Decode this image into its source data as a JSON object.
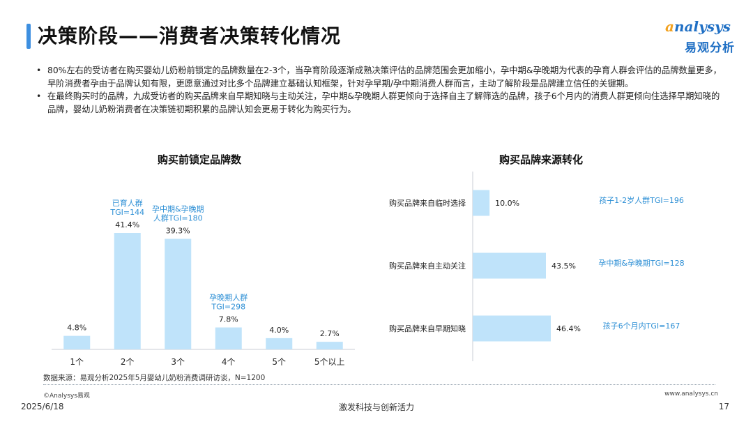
{
  "header": {
    "title": "决策阶段——消费者决策转化情况",
    "logo_text_a": "a",
    "logo_text_rest": "nalysys",
    "logo_cn": "易观分析"
  },
  "bullets": [
    "80%左右的受访者在购买婴幼儿奶粉前锁定的品牌数量在2-3个，当孕育阶段逐渐成熟决策评估的品牌范围会更加缩小，孕中期&孕晚期为代表的孕育人群会评估的品牌数量更多，早阶消费者孕由于品牌认知有限，更愿意通过对比多个品牌建立基础认知框架，针对孕早期/孕中期消费人群而言，主动了解阶段是品牌建立信任的关键期。",
    "在最终购买时的品牌，九成受访者的购买品牌来自早期知晓与主动关注，孕中期&孕晚期人群更倾向于选择自主了解筛选的品牌，孩子6个月内的消费人群更倾向住选择早期知晓的品牌，婴幼儿奶粉消费者在决策链初期积累的品牌认知会更易于转化为购买行为。"
  ],
  "bullet_symbol": "•",
  "chart_data": [
    {
      "type": "bar",
      "title": "购买前锁定品牌数",
      "categories": [
        "1个",
        "2个",
        "3个",
        "4个",
        "5个",
        "5个以上"
      ],
      "values": [
        4.8,
        41.4,
        39.3,
        7.8,
        4.0,
        2.7
      ],
      "value_labels": [
        "4.8%",
        "41.4%",
        "39.3%",
        "7.8%",
        "4.0%",
        "2.7%"
      ],
      "ylim": [
        0,
        41.4
      ],
      "color": "#bfe3fa",
      "annotations": [
        {
          "category": "2个",
          "lines": [
            "已育人群",
            "TGI=144"
          ]
        },
        {
          "category": "3个",
          "lines": [
            "孕中期&孕晚期",
            "人群TGI=180"
          ]
        },
        {
          "category": "4个",
          "lines": [
            "孕晚期人群",
            "TGI=298"
          ]
        }
      ],
      "annotation_color": "#2d8fd5"
    },
    {
      "type": "bar",
      "orientation": "horizontal",
      "title": "购买品牌来源转化",
      "categories": [
        "购买品牌来自临时选择",
        "购买品牌来自主动关注",
        "购买品牌来自早期知晓"
      ],
      "values": [
        10.0,
        43.5,
        46.4
      ],
      "value_labels": [
        "10.0%",
        "43.5%",
        "46.4%"
      ],
      "xlim": [
        0,
        46.4
      ],
      "color": "#bfe3fa",
      "annotations": [
        "孩子1-2岁人群TGI=196",
        "孕中期&孕晚期TGI=128",
        "孩子6个月内TGI=167"
      ],
      "annotation_color": "#2d8fd5"
    }
  ],
  "footer": {
    "source": "数据来源：易观分析2025年5月婴幼儿奶粉消费调研访谈，N=1200",
    "copyright": "©Analysys易观",
    "website": "www.analysys.cn",
    "date": "2025/6/18",
    "slogan": "激发科技与创新活力",
    "page": "17"
  }
}
